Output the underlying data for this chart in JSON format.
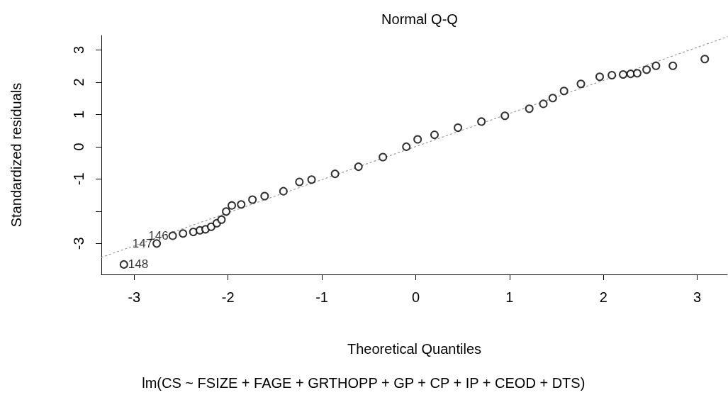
{
  "chart_data": {
    "type": "scatter",
    "title": "Normal Q-Q",
    "xlabel": "Theoretical Quantiles",
    "ylabel": "Standardized residuals",
    "annotations": [
      {
        "text": "148",
        "x": -3.11,
        "y": -3.65
      },
      {
        "text": "147",
        "x": -2.76,
        "y": -3.0
      },
      {
        "text": "146",
        "x": -2.59,
        "y": -2.76
      },
      "lm(CS ~ FSIZE + FAGE + GRTHOPP + GP + CP + IP + CEOD + DTS)"
    ],
    "xlim": [
      -3.35,
      3.32
    ],
    "ylim": [
      -3.96,
      3.45
    ],
    "xticks": [
      -3,
      -2,
      -1,
      0,
      1,
      2,
      3
    ],
    "yticks": [
      -3,
      {
        "value": -2,
        "label": null
      },
      -1,
      0,
      1,
      2,
      3
    ],
    "grid": false,
    "marker": "circle",
    "series": [
      {
        "color": "#000000",
        "x": [
          -3.11,
          -2.76,
          -2.59,
          -2.48,
          -2.37,
          -2.3,
          -2.24,
          -2.18,
          -2.12,
          -2.07,
          -2.02,
          -1.96,
          -1.86,
          -1.74,
          -1.61,
          -1.41,
          -1.24,
          -1.11,
          -0.86,
          -0.61,
          -0.35,
          -0.1,
          0.02,
          0.2,
          0.45,
          0.7,
          0.95,
          1.21,
          1.36,
          1.46,
          1.58,
          1.76,
          1.96,
          2.09,
          2.21,
          2.29,
          2.36,
          2.46,
          2.56,
          2.74,
          3.08
        ],
        "values": [
          -3.65,
          -3.0,
          -2.76,
          -2.69,
          -2.64,
          -2.59,
          -2.56,
          -2.48,
          -2.37,
          -2.26,
          -2.01,
          -1.82,
          -1.79,
          -1.64,
          -1.53,
          -1.38,
          -1.09,
          -1.02,
          -0.84,
          -0.62,
          -0.32,
          0.0,
          0.23,
          0.37,
          0.59,
          0.78,
          0.96,
          1.18,
          1.33,
          1.51,
          1.73,
          1.95,
          2.17,
          2.22,
          2.24,
          2.26,
          2.28,
          2.39,
          2.51,
          2.51,
          2.72
        ]
      },
      {
        "type": "line",
        "color": "#999999",
        "line_style": "dotted",
        "marker": "none",
        "x": [
          -3.35,
          3.32
        ],
        "values": [
          -3.43,
          3.41
        ]
      }
    ]
  }
}
